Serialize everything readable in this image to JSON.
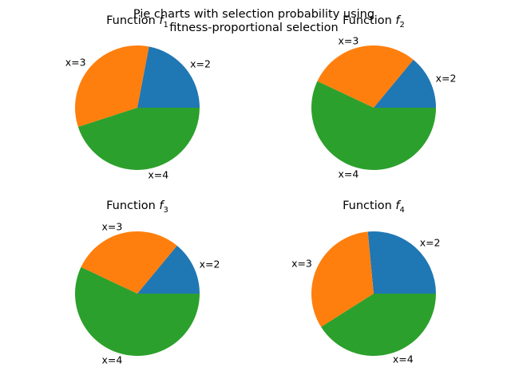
{
  "figure": {
    "suptitle_lines": [
      "Pie charts with selection probability using",
      "fitness-proportional selection"
    ]
  },
  "chart_data": [
    {
      "type": "pie",
      "title": "Function f1",
      "title_prefix": "Function ",
      "title_symbol": "f",
      "title_subscript": "1",
      "labels": [
        "x=2",
        "x=3",
        "x=4"
      ],
      "values": [
        0.22,
        0.33,
        0.45
      ],
      "colors": [
        "#1f77b4",
        "#ff7f0e",
        "#2ca02c"
      ],
      "start_angle_deg": 0,
      "direction": "counterclockwise"
    },
    {
      "type": "pie",
      "title": "Function f2",
      "title_prefix": "Function ",
      "title_symbol": "f",
      "title_subscript": "2",
      "labels": [
        "x=2",
        "x=3",
        "x=4"
      ],
      "values": [
        0.14,
        0.29,
        0.57
      ],
      "colors": [
        "#1f77b4",
        "#ff7f0e",
        "#2ca02c"
      ],
      "start_angle_deg": 0,
      "direction": "counterclockwise"
    },
    {
      "type": "pie",
      "title": "Function f3",
      "title_prefix": "Function ",
      "title_symbol": "f",
      "title_subscript": "3",
      "labels": [
        "x=2",
        "x=3",
        "x=4"
      ],
      "values": [
        0.14,
        0.29,
        0.57
      ],
      "colors": [
        "#1f77b4",
        "#ff7f0e",
        "#2ca02c"
      ],
      "start_angle_deg": 0,
      "direction": "counterclockwise"
    },
    {
      "type": "pie",
      "title": "Function f4",
      "title_prefix": "Function ",
      "title_symbol": "f",
      "title_subscript": "4",
      "labels": [
        "x=2",
        "x=3",
        "x=4"
      ],
      "values": [
        0.265,
        0.325,
        0.41
      ],
      "colors": [
        "#1f77b4",
        "#ff7f0e",
        "#2ca02c"
      ],
      "start_angle_deg": 0,
      "direction": "counterclockwise"
    }
  ]
}
